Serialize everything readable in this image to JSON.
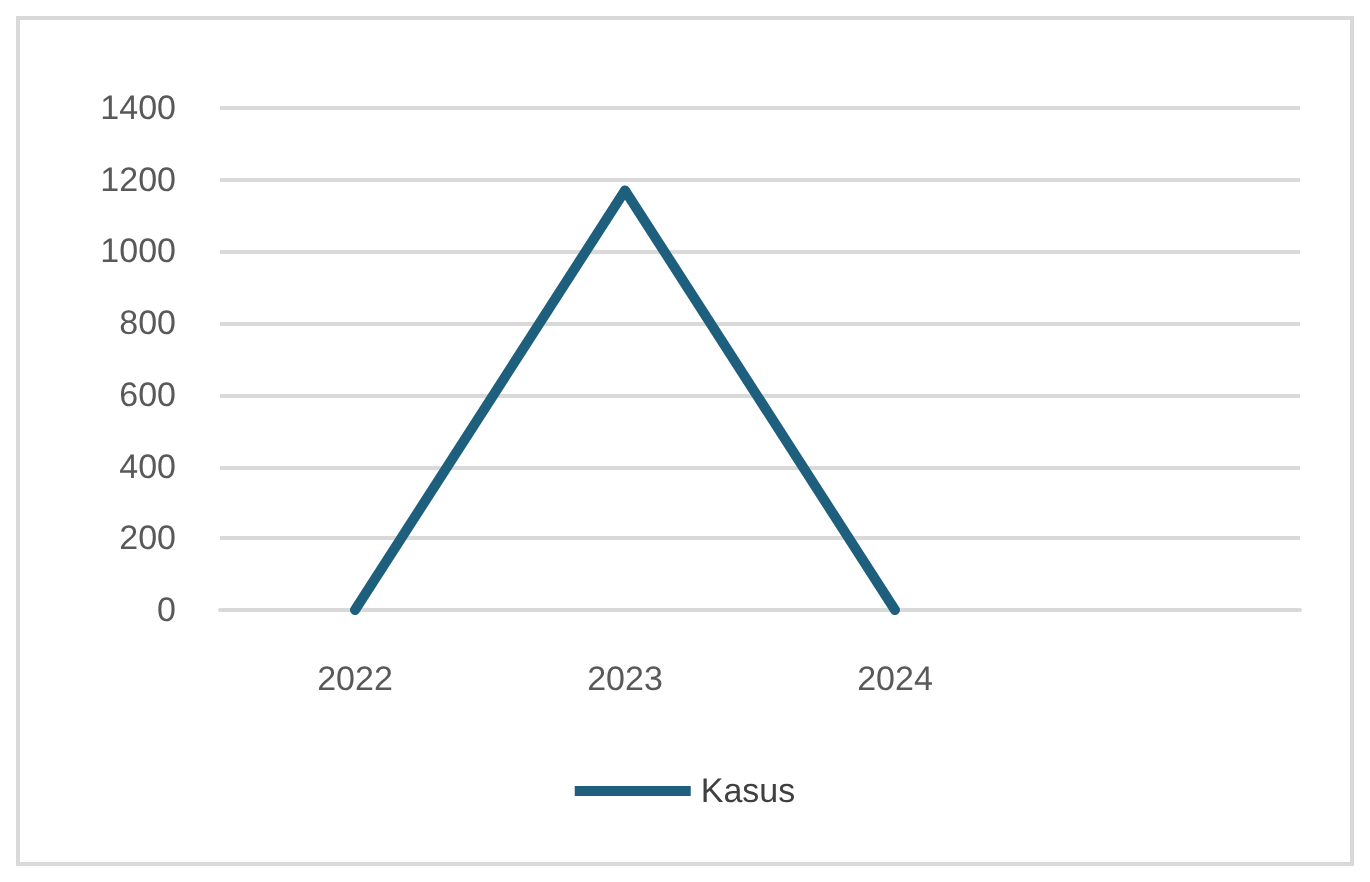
{
  "chart_data": {
    "type": "line",
    "categories": [
      "2022",
      "2023",
      "2024",
      null
    ],
    "series": [
      {
        "name": "Kasus",
        "color": "#1d5f7d",
        "values": [
          0,
          1170,
          0,
          null
        ]
      }
    ],
    "ylim": [
      0,
      1400
    ],
    "yticks": [
      0,
      200,
      400,
      600,
      800,
      1000,
      1200,
      1400
    ],
    "grid": "y",
    "legend": "bottom",
    "marker": "none",
    "line_style": "solid"
  }
}
